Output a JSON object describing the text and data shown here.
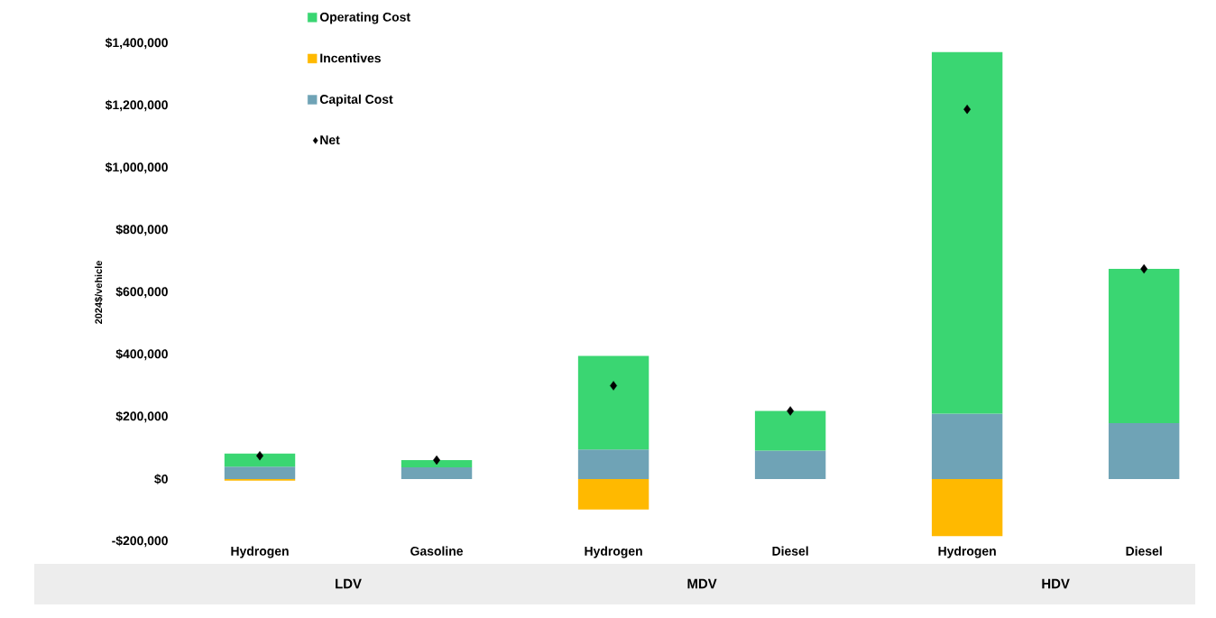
{
  "chart_data": {
    "type": "bar",
    "stacked": true,
    "ylabel": "2024$/vehicle",
    "categories": [
      "Hydrogen",
      "Gasoline",
      "Hydrogen",
      "Diesel",
      "Hydrogen",
      "Diesel"
    ],
    "annotations": [
      "LDV",
      "MDV",
      "HDV"
    ],
    "series": [
      {
        "name": "Net",
        "type": "scatter",
        "color": "#000000",
        "values": [
          75000,
          61000,
          300000,
          219000,
          1188000,
          675000
        ]
      },
      {
        "name": "Capital Cost",
        "color": "#6fa3b6",
        "values": [
          40000,
          38000,
          95000,
          91000,
          210000,
          180000
        ]
      },
      {
        "name": "Incentives",
        "color": "#ffb900",
        "values": [
          -5000,
          null,
          -98000,
          null,
          -183000,
          null
        ]
      },
      {
        "name": "Operating Cost",
        "color": "#3ad672",
        "values": [
          42000,
          23000,
          301000,
          128000,
          1162000,
          495000
        ]
      }
    ],
    "ylim": [
      -200000,
      1400000
    ],
    "yticks": [
      {
        "value": -200000,
        "label": "-$200,000"
      },
      {
        "value": 0,
        "label": "$0"
      },
      {
        "value": 200000,
        "label": "$200,000"
      },
      {
        "value": 400000,
        "label": "$400,000"
      },
      {
        "value": 600000,
        "label": "$600,000"
      },
      {
        "value": 800000,
        "label": "$800,000"
      },
      {
        "value": 1000000,
        "label": "$1,000,000"
      },
      {
        "value": 1200000,
        "label": "$1,200,000"
      },
      {
        "value": 1400000,
        "label": "$1,400,000"
      }
    ],
    "marker": "diamond",
    "legend": "top left"
  }
}
